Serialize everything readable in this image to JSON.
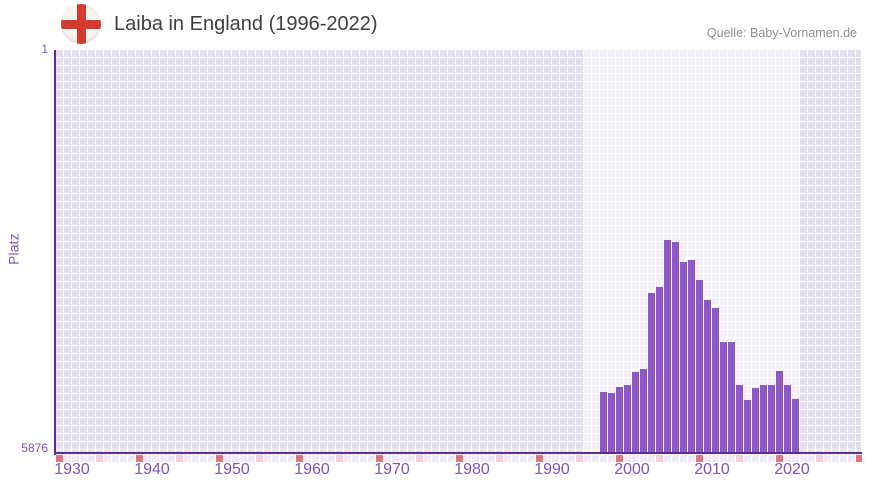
{
  "header": {
    "title": "Laiba in England (1996-2022)",
    "source": "Quelle: Baby-Vornamen.de",
    "flag_icon": "england-st-george-cross"
  },
  "y_axis": {
    "title": "Platz",
    "top_label": "1",
    "bottom_label": "5876"
  },
  "chart_data": {
    "type": "bar",
    "title": "Laiba in England (1996-2022)",
    "xlabel": "",
    "ylabel": "Platz",
    "ylim": [
      1,
      5876
    ],
    "y_inverted": true,
    "grid": "checkered",
    "legend": "none",
    "x_range": [
      1928,
      2028
    ],
    "x_ticks": [
      1930,
      1940,
      1950,
      1960,
      1970,
      1980,
      1990,
      2000,
      2010,
      2020
    ],
    "highlight_range": [
      1994,
      2021
    ],
    "years": [
      1996,
      1997,
      1998,
      1999,
      2000,
      2001,
      2002,
      2003,
      2004,
      2005,
      2006,
      2007,
      2008,
      2009,
      2010,
      2011,
      2012,
      2013,
      2014,
      2015,
      2016,
      2017,
      2018,
      2019,
      2020
    ],
    "ranks": [
      4990,
      5000,
      4920,
      4885,
      4690,
      4650,
      3550,
      3460,
      2775,
      2800,
      3095,
      3060,
      3350,
      3650,
      3760,
      4260,
      4255,
      4880,
      5100,
      4930,
      4890,
      4890,
      4685,
      4880,
      5090
    ],
    "strip": {
      "start_year": 1928,
      "squares": 101,
      "red_every": 10,
      "pink_offset": 5
    },
    "colors": {
      "bar": "#8c58c6",
      "axis": "#5b2d90",
      "tick": "#7e55b7",
      "griddark": "#e3dfee",
      "gridlight": "#f3f0fa",
      "striplav": "#ede9f6",
      "stripred": "#e2737e",
      "strippink": "#f5ccd8",
      "flagred": "#d53a2e",
      "title_text": "#3f3f42",
      "source_text": "#8f8f93"
    }
  }
}
